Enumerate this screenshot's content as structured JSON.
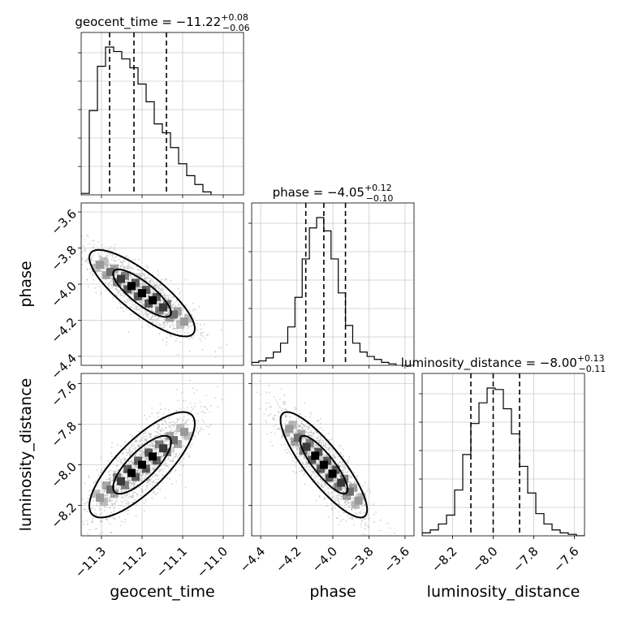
{
  "chart_data": {
    "type": "corner",
    "parameters": [
      "geocent_time",
      "phase",
      "luminosity_distance"
    ],
    "ranges": {
      "geocent_time": [
        -11.35,
        -10.95
      ],
      "phase": [
        -4.45,
        -3.55
      ],
      "luminosity_distance": [
        -8.35,
        -7.55
      ]
    },
    "diagonal": [
      {
        "param": "geocent_time",
        "title_main": "geocent_time = −11.22",
        "title_plus": "+0.08",
        "title_minus": "−0.06",
        "quantiles": [
          -11.28,
          -11.22,
          -11.14
        ],
        "bin_edges": [
          -11.35,
          -11.33,
          -11.31,
          -11.29,
          -11.27,
          -11.25,
          -11.23,
          -11.21,
          -11.19,
          -11.17,
          -11.15,
          -11.13,
          -11.11,
          -11.09,
          -11.07,
          -11.05,
          -11.03
        ],
        "counts": [
          0.01,
          0.57,
          0.87,
          1.0,
          0.97,
          0.92,
          0.86,
          0.75,
          0.63,
          0.48,
          0.42,
          0.32,
          0.21,
          0.13,
          0.07,
          0.02
        ]
      },
      {
        "param": "phase",
        "title_main": "phase = −4.05",
        "title_plus": "+0.12",
        "title_minus": "−0.10",
        "quantiles": [
          -4.15,
          -4.05,
          -3.93
        ],
        "bin_edges": [
          -4.45,
          -4.41,
          -4.37,
          -4.33,
          -4.29,
          -4.25,
          -4.21,
          -4.17,
          -4.13,
          -4.09,
          -4.05,
          -4.01,
          -3.97,
          -3.93,
          -3.89,
          -3.85,
          -3.81,
          -3.77,
          -3.73,
          -3.69,
          -3.65
        ],
        "counts": [
          0.02,
          0.03,
          0.05,
          0.09,
          0.15,
          0.26,
          0.46,
          0.72,
          0.93,
          1.0,
          0.91,
          0.72,
          0.49,
          0.27,
          0.15,
          0.09,
          0.06,
          0.04,
          0.02,
          0.01
        ]
      },
      {
        "param": "luminosity_distance",
        "title_main": "luminosity_distance = −8.00",
        "title_plus": "+0.13",
        "title_minus": "−0.11",
        "quantiles": [
          -8.11,
          -8.0,
          -7.87
        ],
        "bin_edges": [
          -8.35,
          -8.31,
          -8.27,
          -8.23,
          -8.19,
          -8.15,
          -8.11,
          -8.07,
          -8.03,
          -7.99,
          -7.95,
          -7.91,
          -7.87,
          -7.83,
          -7.79,
          -7.75,
          -7.71,
          -7.67,
          -7.63,
          -7.59,
          -7.55
        ],
        "counts": [
          0.02,
          0.04,
          0.08,
          0.14,
          0.31,
          0.55,
          0.76,
          0.9,
          1.0,
          0.99,
          0.86,
          0.69,
          0.47,
          0.29,
          0.15,
          0.08,
          0.04,
          0.02,
          0.01,
          0.0
        ]
      }
    ],
    "pairs": [
      {
        "x": "geocent_time",
        "y": "phase",
        "mean": [
          -11.2,
          -4.05
        ],
        "std": [
          0.065,
          0.12
        ],
        "corr": -0.82
      },
      {
        "x": "geocent_time",
        "y": "luminosity_distance",
        "mean": [
          -11.2,
          -8.0
        ],
        "std": [
          0.065,
          0.13
        ],
        "corr": 0.78
      },
      {
        "x": "phase",
        "y": "luminosity_distance",
        "mean": [
          -4.05,
          -8.0
        ],
        "std": [
          0.12,
          0.13
        ],
        "corr": -0.85
      }
    ],
    "ticks": {
      "geocent_time": {
        "values": [
          -11.3,
          -11.2,
          -11.1,
          -11.0
        ],
        "labels": [
          "−11.3",
          "−11.2",
          "−11.1",
          "−11.0"
        ]
      },
      "phase": {
        "values": [
          -4.4,
          -4.2,
          -4.0,
          -3.8,
          -3.6
        ],
        "labels": [
          "−4.4",
          "−4.2",
          "−4.0",
          "−3.8",
          "−3.6"
        ]
      },
      "luminosity_distance": {
        "values": [
          -8.2,
          -8.0,
          -7.8,
          -7.6
        ],
        "labels": [
          "−8.2",
          "−8.0",
          "−7.8",
          "−7.6"
        ]
      }
    },
    "axis_labels": {
      "geocent_time": "geocent_time",
      "phase": "phase",
      "luminosity_distance": "luminosity_distance"
    },
    "grid": true,
    "colors": {
      "hist": "#000000",
      "scatter": "#b0b0b0",
      "grid": "#cccccc"
    }
  }
}
